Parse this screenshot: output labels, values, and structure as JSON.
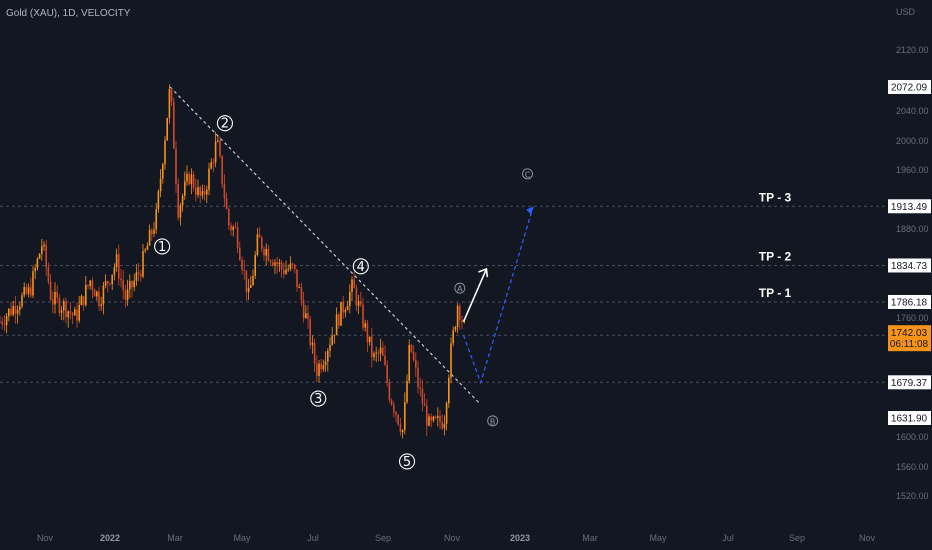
{
  "header": {
    "title": "Gold (XAU), 1D, VELOCITY"
  },
  "chart_data": {
    "type": "candlestick",
    "currency": "USD",
    "y_ticks": [
      "2120.00",
      "2040.00",
      "2000.00",
      "1960.00",
      "1880.00",
      "1760.00",
      "1600.00",
      "1560.00",
      "1520.00"
    ],
    "x_ticks": [
      "Nov",
      "2022",
      "Mar",
      "May",
      "Jul",
      "Sep",
      "Nov",
      "2023",
      "Mar",
      "May",
      "Jul",
      "Sep",
      "Nov"
    ],
    "price_tags": [
      {
        "value": "2072.09",
        "style": "white"
      },
      {
        "value": "1913.49",
        "style": "white"
      },
      {
        "value": "1834.73",
        "style": "white"
      },
      {
        "value": "1786.18",
        "style": "white"
      },
      {
        "value": "1679.37",
        "style": "white"
      },
      {
        "value": "1631.90",
        "style": "white"
      },
      {
        "value": "1742.03",
        "style": "orange",
        "countdown": "06:11:08"
      }
    ],
    "targets": [
      {
        "label": "TP - 3",
        "price": 1913.49
      },
      {
        "label": "TP - 2",
        "price": 1834.73
      },
      {
        "label": "TP - 1",
        "price": 1786.18
      }
    ],
    "support_line": 1679.37,
    "current_line": 1742.03,
    "impulse_waves": [
      {
        "label": "1",
        "date": "2022-03-01",
        "price": 1900
      },
      {
        "label": "2",
        "date": "2022-04-18",
        "price": 2000
      },
      {
        "label": "3",
        "date": "2022-07-14",
        "price": 1695
      },
      {
        "label": "4",
        "date": "2022-08-15",
        "price": 1807
      },
      {
        "label": "5",
        "date": "2022-09-28",
        "price": 1614
      }
    ],
    "corrective_waves": [
      {
        "label": "A",
        "date": "2022-11-15",
        "price": 1786
      },
      {
        "label": "B",
        "date": "2022-12-05",
        "price": 1660
      },
      {
        "label": "C",
        "date": "2023-01-15",
        "price": 1930
      }
    ],
    "trendline": [
      {
        "date": "2022-03-08",
        "price": 2072
      },
      {
        "date": "2022-12-05",
        "price": 1650
      }
    ],
    "projection_path": [
      {
        "date": "2022-11-20",
        "price": 1742
      },
      {
        "date": "2022-12-05",
        "price": 1679
      },
      {
        "date": "2023-01-20",
        "price": 1913
      }
    ],
    "arrow_up": [
      {
        "date": "2022-11-20",
        "price": 1760
      },
      {
        "date": "2022-12-10",
        "price": 1830
      }
    ],
    "price_path": [
      [
        "2021-10-10",
        1760
      ],
      [
        "2021-10-25",
        1785
      ],
      [
        "2021-11-05",
        1800
      ],
      [
        "2021-11-16",
        1865
      ],
      [
        "2021-11-24",
        1790
      ],
      [
        "2021-12-06",
        1780
      ],
      [
        "2021-12-15",
        1765
      ],
      [
        "2021-12-28",
        1815
      ],
      [
        "2022-01-05",
        1790
      ],
      [
        "2022-01-20",
        1840
      ],
      [
        "2022-01-28",
        1790
      ],
      [
        "2022-02-10",
        1830
      ],
      [
        "2022-02-24",
        1900
      ],
      [
        "2022-03-08",
        2072
      ],
      [
        "2022-03-15",
        1910
      ],
      [
        "2022-03-25",
        1955
      ],
      [
        "2022-04-05",
        1920
      ],
      [
        "2022-04-18",
        2000
      ],
      [
        "2022-04-28",
        1890
      ],
      [
        "2022-05-05",
        1880
      ],
      [
        "2022-05-16",
        1790
      ],
      [
        "2022-05-24",
        1870
      ],
      [
        "2022-06-03",
        1850
      ],
      [
        "2022-06-14",
        1830
      ],
      [
        "2022-06-24",
        1830
      ],
      [
        "2022-07-05",
        1765
      ],
      [
        "2022-07-14",
        1695
      ],
      [
        "2022-07-21",
        1715
      ],
      [
        "2022-08-02",
        1765
      ],
      [
        "2022-08-10",
        1790
      ],
      [
        "2022-08-15",
        1807
      ],
      [
        "2022-08-25",
        1755
      ],
      [
        "2022-09-02",
        1710
      ],
      [
        "2022-09-09",
        1720
      ],
      [
        "2022-09-16",
        1665
      ],
      [
        "2022-09-28",
        1614
      ],
      [
        "2022-10-04",
        1730
      ],
      [
        "2022-10-12",
        1670
      ],
      [
        "2022-10-21",
        1620
      ],
      [
        "2022-11-03",
        1630
      ],
      [
        "2022-11-08",
        1710
      ],
      [
        "2022-11-15",
        1786
      ],
      [
        "2022-11-22",
        1742
      ]
    ],
    "colors": {
      "background": "#131722",
      "candle_up": "#f7931a",
      "candle_down": "#d4492a",
      "trendline": "#c9cbd1",
      "projection": "#2962ff",
      "arrow": "#ffffff",
      "current_tag": "#f7931a",
      "grid_dash": "#4a4e5a"
    }
  }
}
